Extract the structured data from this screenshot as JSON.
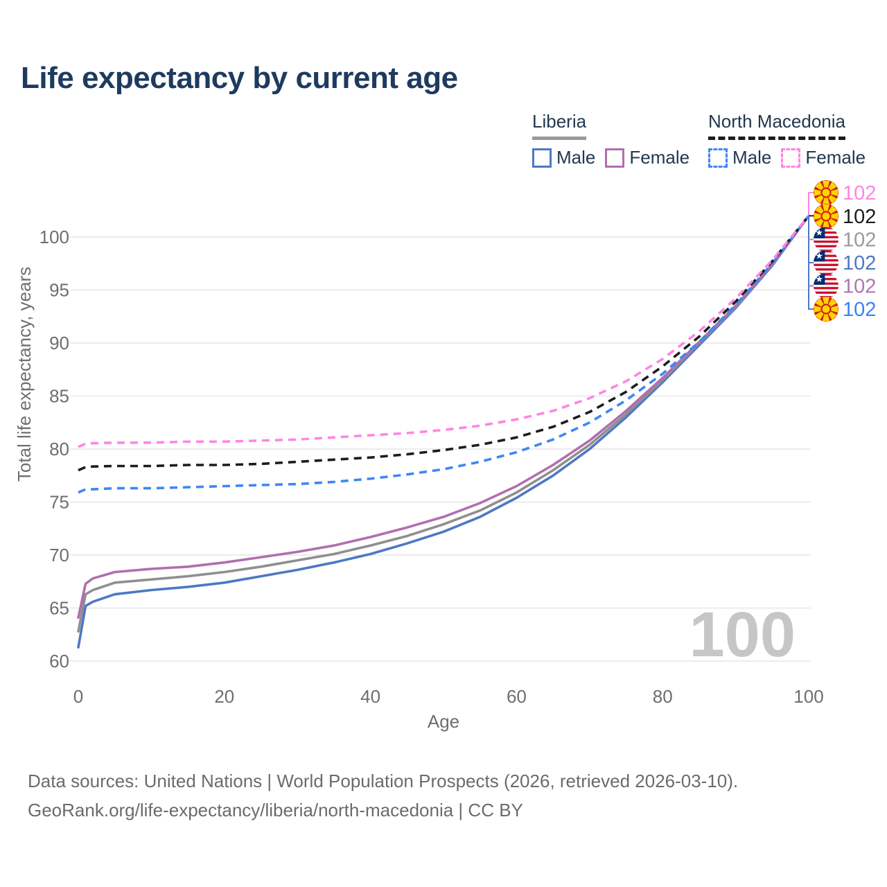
{
  "title": "Life expectancy by current age",
  "legend": {
    "liberia": {
      "label": "Liberia",
      "male": "Male",
      "female": "Female"
    },
    "north_macedonia": {
      "label": "North Macedonia",
      "male": "Male",
      "female": "Female"
    }
  },
  "colors": {
    "liberia_male": "#4d78c4",
    "liberia_both": "#8f8f8f",
    "liberia_female": "#b06fae",
    "nm_male": "#3d87f5",
    "nm_both": "#1c1c1c",
    "nm_female": "#ff85e2",
    "title_text": "#1e3a5f",
    "legend_text": "#22384e",
    "axis_text": "#6e6e6e",
    "grid": "#ececec",
    "watermark": "#c6c6c6",
    "footer_text": "#6b6b6b",
    "mk_flag_red": "#d21f11",
    "mk_flag_yellow": "#ffd500",
    "lr_flag_red": "#c8102e",
    "lr_flag_blue": "#002d74"
  },
  "chart_data": {
    "type": "line",
    "title": "Life expectancy by current age",
    "xlabel": "Age",
    "ylabel": "Total life expectancy, years",
    "xlim": [
      0,
      100
    ],
    "ylim": [
      60,
      103
    ],
    "xticks": [
      0,
      20,
      40,
      60,
      80,
      100
    ],
    "yticks": [
      60,
      65,
      70,
      75,
      80,
      85,
      90,
      95,
      100
    ],
    "grid": "horizontal-only",
    "legend_position": "top-right",
    "x": [
      0,
      1,
      2,
      5,
      10,
      15,
      20,
      25,
      30,
      35,
      40,
      45,
      50,
      55,
      60,
      65,
      70,
      75,
      80,
      85,
      90,
      95,
      100
    ],
    "series": [
      {
        "key": "liberia_male",
        "name": "Liberia Male",
        "country": "Liberia",
        "sex": "Male",
        "style": "solid",
        "color": "#4d78c4",
        "values": [
          61.3,
          65.2,
          65.6,
          66.3,
          66.7,
          67.0,
          67.4,
          68.0,
          68.6,
          69.3,
          70.1,
          71.1,
          72.2,
          73.6,
          75.4,
          77.5,
          80.0,
          83.0,
          86.3,
          89.8,
          93.3,
          97.3,
          102
        ]
      },
      {
        "key": "liberia_both",
        "name": "Liberia Both sexes",
        "country": "Liberia",
        "sex": "Both",
        "style": "solid",
        "color": "#8f8f8f",
        "values": [
          62.8,
          66.3,
          66.7,
          67.4,
          67.7,
          68.0,
          68.4,
          68.9,
          69.5,
          70.1,
          70.9,
          71.8,
          72.9,
          74.2,
          75.9,
          78.0,
          80.4,
          83.3,
          86.5,
          90.0,
          93.4,
          97.4,
          102
        ]
      },
      {
        "key": "liberia_female",
        "name": "Liberia Female",
        "country": "Liberia",
        "sex": "Female",
        "style": "solid",
        "color": "#b06fae",
        "values": [
          64.1,
          67.3,
          67.8,
          68.4,
          68.7,
          68.9,
          69.3,
          69.8,
          70.3,
          70.9,
          71.7,
          72.6,
          73.6,
          74.9,
          76.5,
          78.5,
          80.8,
          83.6,
          86.7,
          90.1,
          93.5,
          97.4,
          102
        ]
      },
      {
        "key": "nm_male",
        "name": "North Macedonia Male",
        "country": "North Macedonia",
        "sex": "Male",
        "style": "dashed",
        "color": "#3d87f5",
        "values": [
          75.9,
          76.2,
          76.2,
          76.3,
          76.3,
          76.4,
          76.5,
          76.6,
          76.7,
          76.9,
          77.2,
          77.6,
          78.1,
          78.8,
          79.7,
          80.9,
          82.5,
          84.6,
          87.1,
          90.1,
          93.6,
          97.5,
          102
        ]
      },
      {
        "key": "nm_both",
        "name": "North Macedonia Both sexes",
        "country": "North Macedonia",
        "sex": "Both",
        "style": "dashed",
        "color": "#1c1c1c",
        "values": [
          78.0,
          78.3,
          78.35,
          78.4,
          78.4,
          78.5,
          78.5,
          78.6,
          78.8,
          79.0,
          79.2,
          79.5,
          79.9,
          80.4,
          81.1,
          82.1,
          83.5,
          85.4,
          87.8,
          90.6,
          93.9,
          97.7,
          102
        ]
      },
      {
        "key": "nm_female",
        "name": "North Macedonia Female",
        "country": "North Macedonia",
        "sex": "Female",
        "style": "dashed",
        "color": "#ff85e2",
        "values": [
          80.2,
          80.5,
          80.55,
          80.6,
          80.6,
          80.7,
          80.7,
          80.8,
          80.9,
          81.1,
          81.3,
          81.5,
          81.8,
          82.2,
          82.8,
          83.6,
          84.8,
          86.4,
          88.5,
          91.1,
          94.2,
          97.8,
          102
        ]
      }
    ],
    "end_labels": [
      {
        "series": "nm_female",
        "flag": "north-macedonia",
        "value": "102",
        "color": "#ff85e2"
      },
      {
        "series": "nm_both",
        "flag": "north-macedonia",
        "value": "102",
        "color": "#1c1c1c"
      },
      {
        "series": "liberia_both",
        "flag": "liberia",
        "value": "102",
        "color": "#9a9a9a"
      },
      {
        "series": "liberia_male",
        "flag": "liberia",
        "value": "102",
        "color": "#4d78c4"
      },
      {
        "series": "liberia_female",
        "flag": "liberia",
        "value": "102",
        "color": "#b273b2"
      },
      {
        "series": "nm_male",
        "flag": "north-macedonia",
        "value": "102",
        "color": "#3b82f6"
      }
    ],
    "watermark": "100"
  },
  "footer": {
    "line1": "Data sources: United Nations | World Population Prospects (2026, retrieved 2026-03-10).",
    "line2": "GeoRank.org/life-expectancy/liberia/north-macedonia | CC BY"
  }
}
